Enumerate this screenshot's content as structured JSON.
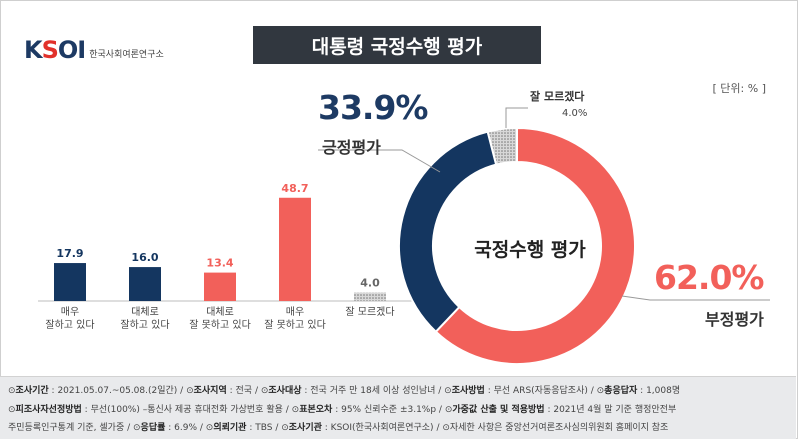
{
  "logo": {
    "brand": "KSOI",
    "sub": "한국사회여론연구소"
  },
  "title": "대통령 국정수행 평가",
  "unit": "[ 단위: % ]",
  "colors": {
    "navy": "#143660",
    "red": "#f2605a",
    "gray": "#b5b5b5",
    "title_bg": "#31373f"
  },
  "chart_data": [
    {
      "type": "bar",
      "categories": [
        "매우\n잘하고 있다",
        "대체로\n잘하고 있다",
        "대체로\n잘 못하고 있다",
        "매우\n잘 못하고 있다",
        "잘 모르겠다"
      ],
      "values": [
        17.9,
        16.0,
        13.4,
        48.7,
        4.0
      ],
      "value_labels": [
        "17.9",
        "16.0",
        "13.4",
        "48.7",
        "4.0"
      ],
      "colors": [
        "#143660",
        "#143660",
        "#f2605a",
        "#f2605a",
        "#b5b5b5"
      ],
      "ylim": [
        0,
        50
      ],
      "grid": false
    },
    {
      "type": "pie",
      "title": "국정수행 평가",
      "slices": [
        {
          "label": "긍정평가",
          "value": 33.9,
          "display": "33.9%",
          "color": "#143660"
        },
        {
          "label": "잘 모르겠다",
          "value": 4.0,
          "display": "4.0%",
          "color": "#b5b5b5"
        },
        {
          "label": "부정평가",
          "value": 62.0,
          "display": "62.0%",
          "color": "#f2605a"
        }
      ]
    }
  ],
  "footer": {
    "line1": [
      {
        "k": "조사기간",
        "v": "2021.05.07.~05.08.(2일간)"
      },
      {
        "k": "조사지역",
        "v": "전국"
      },
      {
        "k": "조사대상",
        "v": "전국 거주 만 18세 이상 성인남녀"
      },
      {
        "k": "조사방법",
        "v": "무선 ARS(자동응답조사)"
      },
      {
        "k": "총응답자",
        "v": "1,008명"
      }
    ],
    "line2": [
      {
        "k": "피조사자선정방법",
        "v": "무선(100%) –통신사 제공 휴대전화 가상번호 활용"
      },
      {
        "k": "표본오차",
        "v": "95% 신뢰수준 ±3.1%p"
      },
      {
        "k": "가중값 산출 및 적용방법",
        "v": "2021년 4월 말 기준 행정안전부"
      }
    ],
    "line3": [
      {
        "k": "",
        "v": "주민등록인구통계 기준, 셀가중"
      },
      {
        "k": "응답률",
        "v": "6.9%"
      },
      {
        "k": "의뢰기관",
        "v": "TBS"
      },
      {
        "k": "조사기관",
        "v": "KSOI(한국사회여론연구소)"
      },
      {
        "k": "",
        "v": "자세한 사항은 중앙선거여론조사심의위원회 홈페이지 참조"
      }
    ]
  }
}
